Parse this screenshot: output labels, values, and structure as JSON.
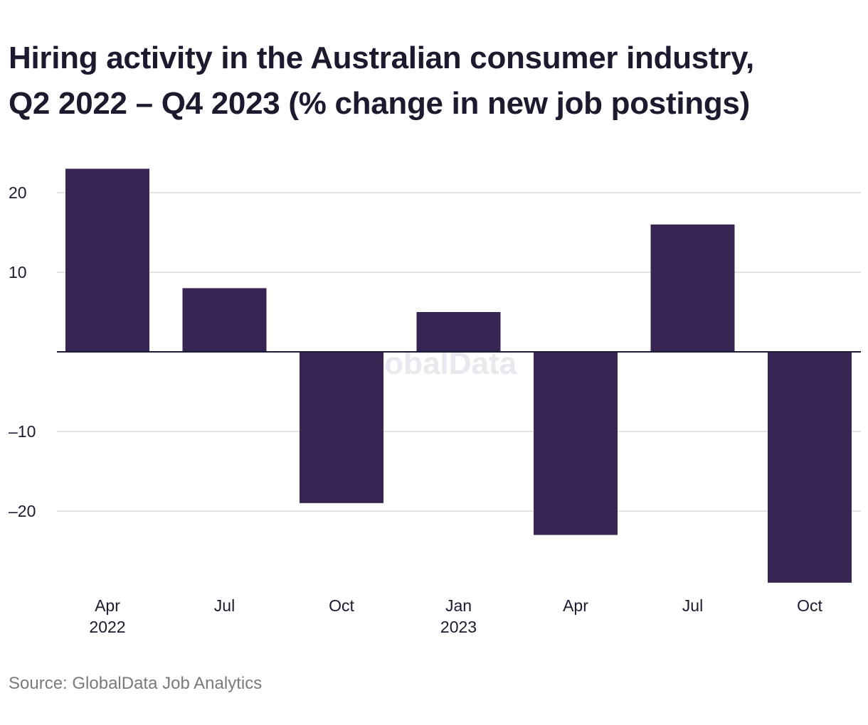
{
  "title_lines": [
    "Hiring activity in the Australian consumer industry,",
    "Q2 2022 – Q4 2023 (% change in new job postings)"
  ],
  "source": "Source: GlobalData Job Analytics",
  "watermark": "GlobalData",
  "colors": {
    "bar": "#372653",
    "grid": "#d9d9d9",
    "zero_line": "#1b1a2e",
    "text": "#1b1a2e",
    "source_text": "#7a7a7a"
  },
  "chart_data": {
    "type": "bar",
    "categories": [
      "Apr 2022",
      "Jul 2022",
      "Oct 2022",
      "Jan 2023",
      "Apr 2023",
      "Jul 2023",
      "Oct 2023"
    ],
    "tick_labels": [
      [
        "Apr",
        "2022"
      ],
      [
        "Jul"
      ],
      [
        "Oct"
      ],
      [
        "Jan",
        "2023"
      ],
      [
        "Apr"
      ],
      [
        "Jul"
      ],
      [
        "Oct"
      ]
    ],
    "values": [
      23,
      8,
      -19,
      5,
      -23,
      16,
      -29
    ],
    "y_ticks": [
      20,
      10,
      0,
      -10,
      -20
    ],
    "y_tick_labels": [
      "20",
      "10",
      "",
      "–10",
      "–20"
    ],
    "ylim": [
      -31,
      25
    ],
    "grid": true,
    "legend": "none",
    "xlabel": "",
    "ylabel": ""
  }
}
